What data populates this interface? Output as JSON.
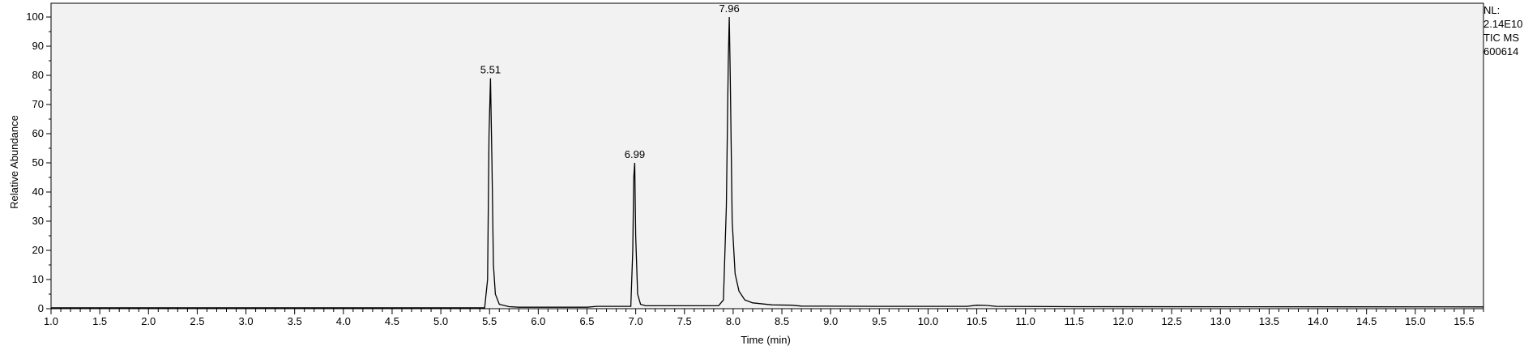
{
  "chart_data": {
    "type": "line",
    "title": "",
    "xlabel": "Time (min)",
    "ylabel": "Relative Abundance",
    "xlim": [
      1.0,
      15.7
    ],
    "ylim": [
      0,
      100
    ],
    "x_ticks": [
      "1.0",
      "1.5",
      "2.0",
      "2.5",
      "3.0",
      "3.5",
      "4.0",
      "4.5",
      "5.0",
      "5.5",
      "6.0",
      "6.5",
      "7.0",
      "7.5",
      "8.0",
      "8.5",
      "9.0",
      "9.5",
      "10.0",
      "10.5",
      "11.0",
      "11.5",
      "12.0",
      "12.5",
      "13.0",
      "13.5",
      "14.0",
      "14.5",
      "15.0",
      "15.5"
    ],
    "y_ticks": [
      "0",
      "10",
      "20",
      "30",
      "40",
      "50",
      "60",
      "70",
      "80",
      "90",
      "100"
    ],
    "grid": false,
    "line_color": "#000000",
    "background_color": "#f2f2f2",
    "peaks": [
      {
        "rt": 5.51,
        "label": "5.51",
        "height": 79
      },
      {
        "rt": 6.99,
        "label": "6.99",
        "height": 50
      },
      {
        "rt": 7.96,
        "label": "7.96",
        "height": 100
      }
    ],
    "series": [
      {
        "x": [
          1.0,
          5.45,
          5.48,
          5.495,
          5.51,
          5.525,
          5.54,
          5.56,
          5.6,
          5.7,
          5.8,
          6.5,
          6.6,
          6.95,
          6.97,
          6.98,
          6.99,
          7.0,
          7.02,
          7.05,
          7.1,
          7.5,
          7.85,
          7.9,
          7.93,
          7.95,
          7.96,
          7.97,
          7.99,
          8.02,
          8.06,
          8.12,
          8.2,
          8.4,
          8.6,
          8.7,
          9.5,
          10.4,
          10.5,
          10.6,
          10.7,
          11.5,
          15.7
        ],
        "y": [
          0.3,
          0.3,
          10,
          60,
          79,
          50,
          15,
          5,
          1.5,
          0.7,
          0.5,
          0.5,
          0.8,
          0.8,
          20,
          45,
          50,
          25,
          5,
          1.5,
          1,
          1,
          1,
          3,
          35,
          85,
          100,
          80,
          30,
          12,
          6,
          3,
          2,
          1.3,
          1.2,
          0.9,
          0.8,
          0.8,
          1.2,
          1.1,
          0.8,
          0.7,
          0.6
        ]
      }
    ]
  },
  "side_info": {
    "nl_label": "NL:",
    "nl_value": "2.14E10",
    "scan_type": "TIC MS",
    "file_name": "600614"
  }
}
